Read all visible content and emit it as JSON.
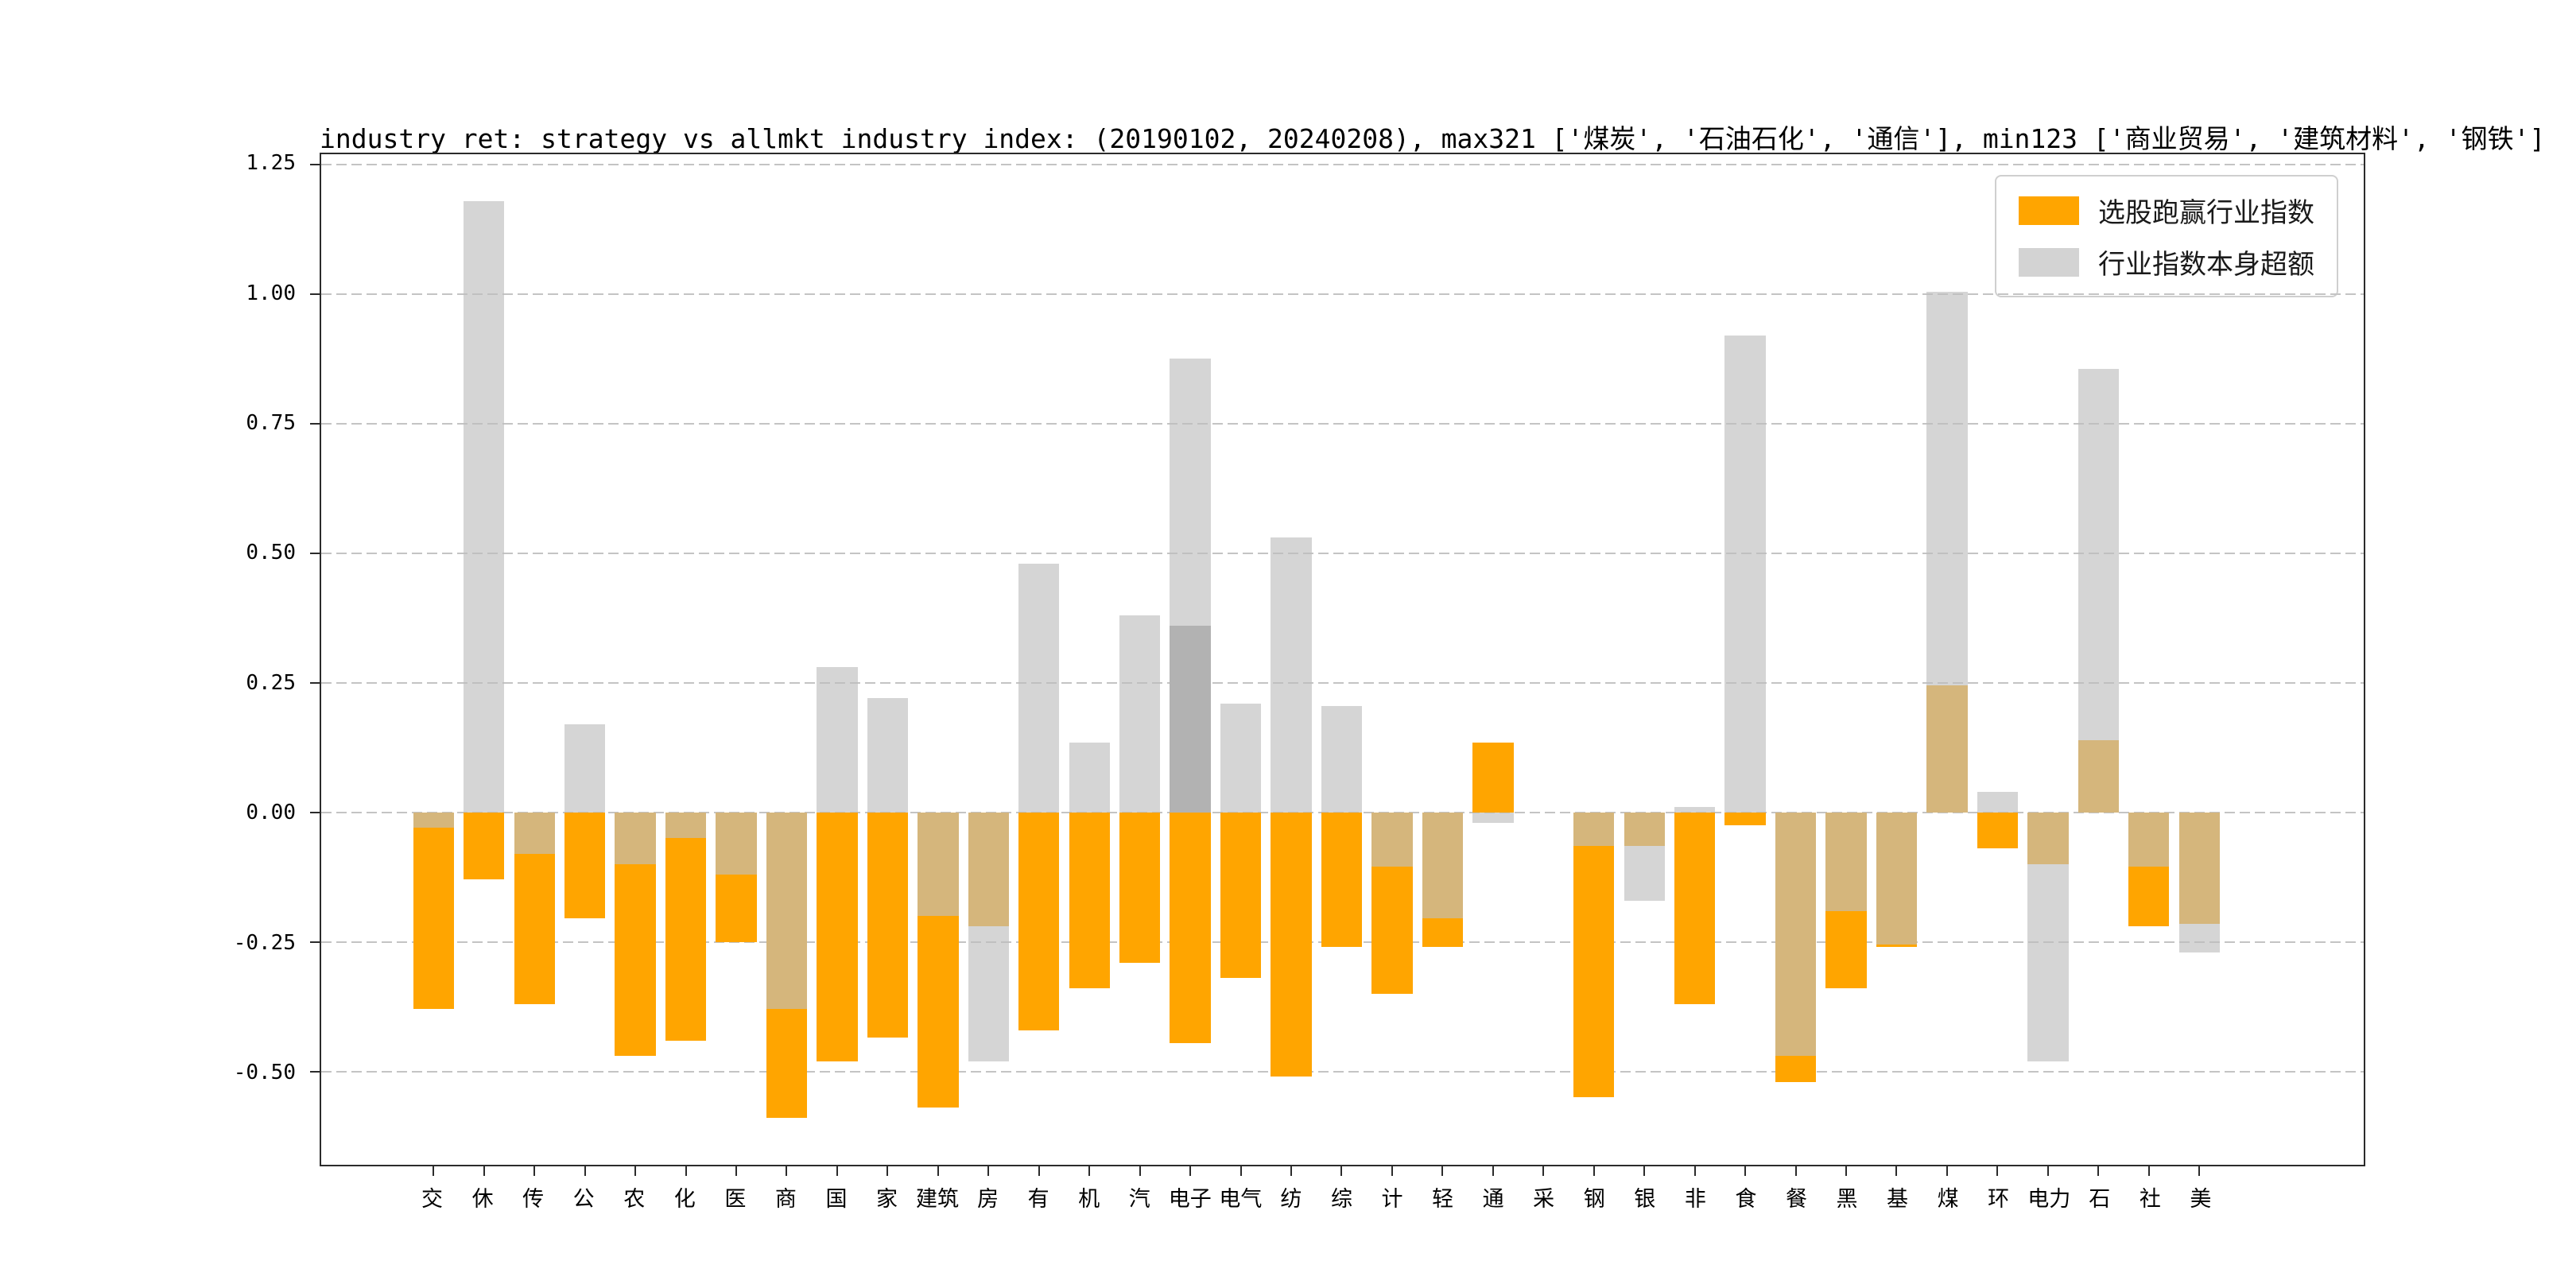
{
  "chart_data": {
    "type": "bar",
    "title": "industry ret: strategy vs allmkt_industry_index: (20190102, 20240208), max321 ['煤炭', '石油石化', '通信'], min123 ['商业贸易', '建筑材料', '钢铁']",
    "categories": [
      "交",
      "休",
      "传",
      "公",
      "农",
      "化",
      "医",
      "商",
      "国",
      "家",
      "建筑",
      "房",
      "有",
      "机",
      "汽",
      "电子",
      "电气",
      "纺",
      "综",
      "计",
      "轻",
      "通",
      "采",
      "钢",
      "银",
      "非",
      "食",
      "餐",
      "黑",
      "基",
      "煤",
      "环",
      "电力",
      "石",
      "社",
      "美"
    ],
    "series": [
      {
        "name": "选股跑赢行业指数",
        "color": "#FFA500",
        "values": [
          -0.38,
          -0.13,
          -0.37,
          -0.205,
          -0.47,
          -0.44,
          -0.25,
          -0.59,
          -0.48,
          -0.435,
          -0.57,
          -0.22,
          -0.42,
          -0.34,
          -0.29,
          -0.445,
          -0.32,
          -0.51,
          -0.26,
          -0.35,
          -0.26,
          0.135,
          0,
          -0.55,
          -0.065,
          -0.37,
          -0.025,
          -0.52,
          -0.34,
          -0.26,
          0.245,
          -0.07,
          -0.1,
          0.14,
          -0.22,
          -0.215
        ]
      },
      {
        "name": "行业指数本身超额",
        "color": "#d3d3d3",
        "values": [
          -0.03,
          1.18,
          -0.08,
          0.17,
          -0.1,
          -0.05,
          -0.12,
          -0.38,
          0.28,
          0.22,
          -0.2,
          -0.48,
          0.48,
          0.135,
          0.38,
          0.875,
          0.21,
          0.53,
          0.205,
          -0.105,
          -0.205,
          -0.02,
          0,
          -0.065,
          -0.17,
          0.01,
          0.92,
          -0.47,
          -0.19,
          -0.255,
          1.005,
          0.04,
          -0.48,
          0.855,
          -0.105,
          -0.27
        ]
      }
    ],
    "extra_segments": [
      {
        "category": "电子",
        "from": 0,
        "to": 0.36,
        "color": "#b2b2b2"
      }
    ],
    "ylim": [
      -0.68,
      1.27
    ],
    "yticks": [
      1.25,
      1.0,
      0.75,
      0.5,
      0.25,
      0.0,
      -0.25,
      -0.5
    ],
    "grid": "dashed-horizontal",
    "legend_position": "upper-right"
  }
}
